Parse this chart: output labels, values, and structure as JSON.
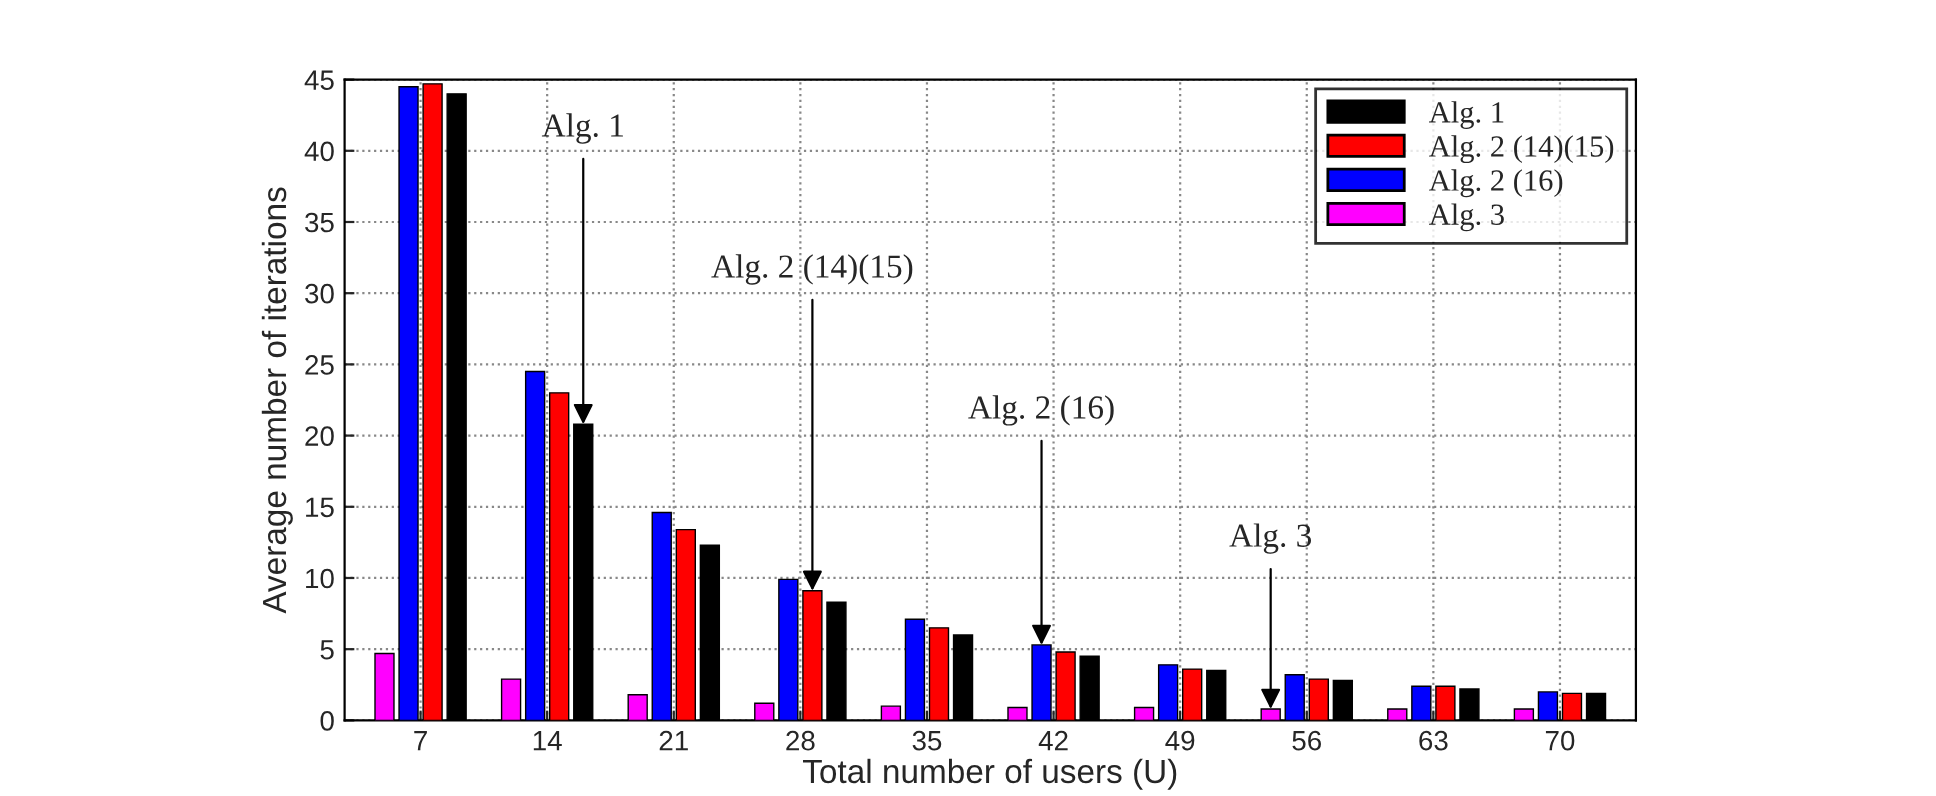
{
  "chart_data": {
    "type": "bar",
    "xlabel": "Total number of users (U)",
    "ylabel": "Average number of iterations",
    "categories": [
      "7",
      "14",
      "21",
      "28",
      "35",
      "42",
      "49",
      "56",
      "63",
      "70"
    ],
    "series": [
      {
        "name": "Alg. 3",
        "color": "#ff00ff",
        "values": [
          4.7,
          2.9,
          1.8,
          1.2,
          1.0,
          0.9,
          0.9,
          0.8,
          0.8,
          0.8
        ]
      },
      {
        "name": "Alg. 2 (16)",
        "color": "#0000ff",
        "values": [
          44.5,
          24.5,
          14.6,
          9.9,
          7.1,
          5.3,
          3.9,
          3.2,
          2.4,
          2.0
        ]
      },
      {
        "name": "Alg. 2 (14)(15)",
        "color": "#ff0000",
        "values": [
          44.7,
          23.0,
          13.4,
          9.1,
          6.5,
          4.8,
          3.6,
          2.9,
          2.4,
          1.9
        ]
      },
      {
        "name": "Alg. 1",
        "color": "#000000",
        "values": [
          44.0,
          20.8,
          12.3,
          8.3,
          6.0,
          4.5,
          3.5,
          2.8,
          2.2,
          1.9
        ]
      }
    ],
    "ylim": [
      0,
      45
    ],
    "yticks": [
      0,
      5,
      10,
      15,
      20,
      25,
      30,
      35,
      40,
      45
    ],
    "grid": true,
    "legend": "top right",
    "annotations": [
      {
        "text": "Alg. 1",
        "y": 20.8
      },
      {
        "text": "Alg. 2 (14)(15)",
        "y": 9.1
      },
      {
        "text": "Alg. 2 (16)",
        "y": 5.3
      },
      {
        "text": "Alg. 3",
        "y": 0.8
      }
    ]
  }
}
